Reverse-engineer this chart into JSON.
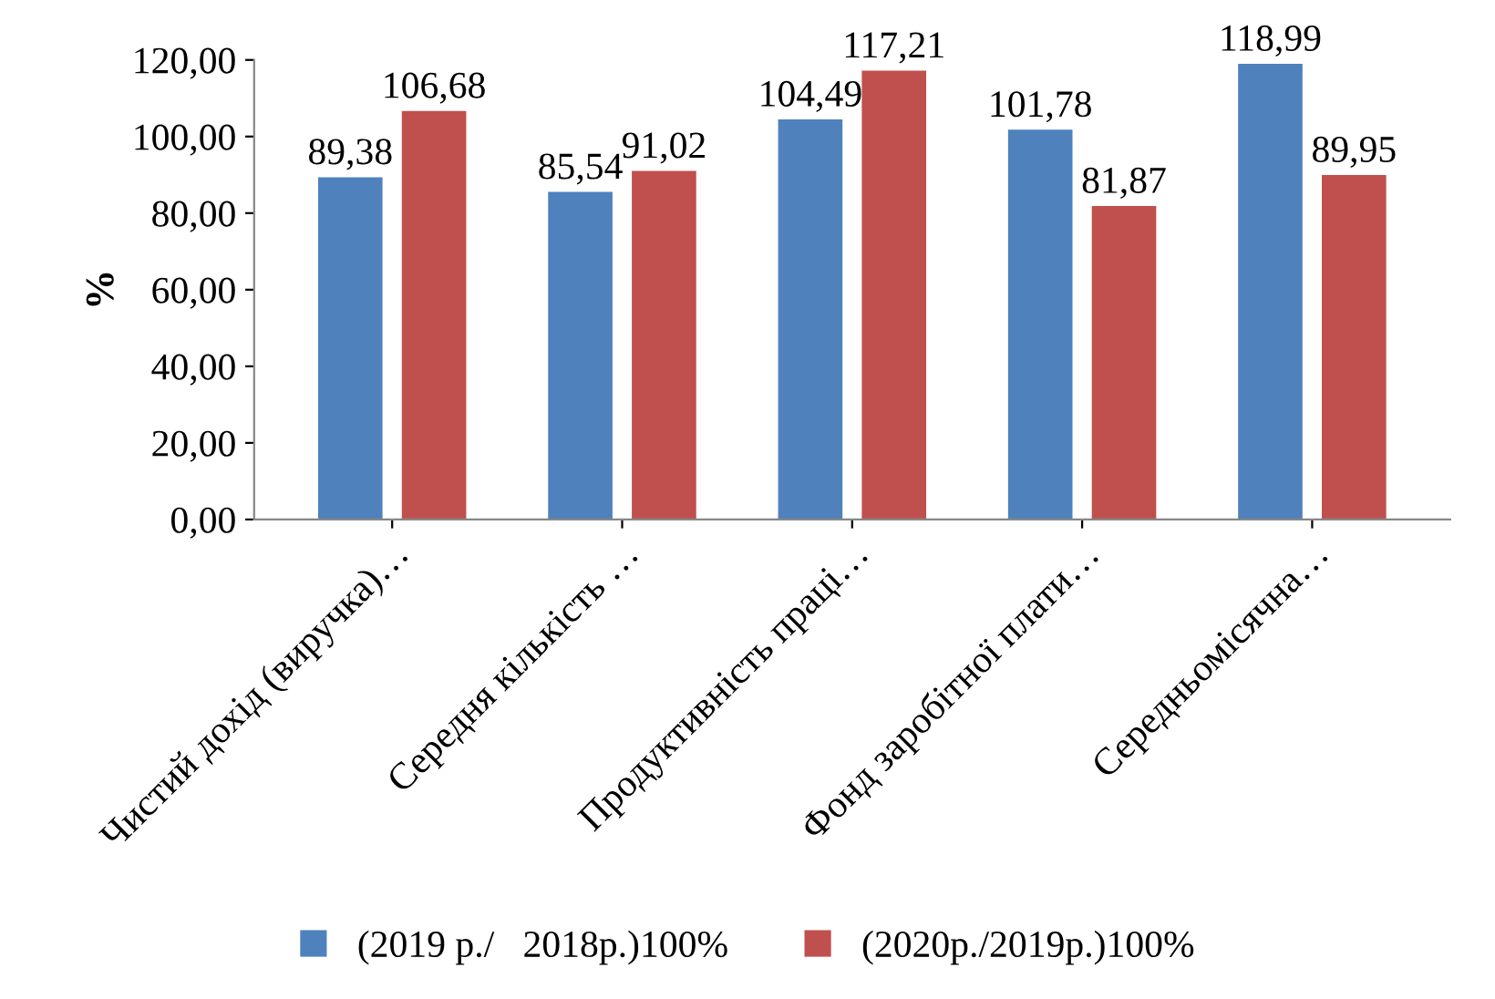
{
  "chart_data": {
    "type": "bar",
    "ylabel": "%",
    "categories": [
      "Чистий дохід (виручка)…",
      "Середня кількість …",
      "Продуктивність праці…",
      "Фонд заробітної плати…",
      "Середньомісячна…"
    ],
    "series": [
      {
        "name": "(2019 р./   2018р.)100%",
        "color": "#4f81bd",
        "values": [
          89.38,
          85.54,
          104.49,
          101.78,
          118.99
        ],
        "value_labels": [
          "89,38",
          "85,54",
          "104,49",
          "101,78",
          "118,99"
        ]
      },
      {
        "name": "(2020р./2019р.)100%",
        "color": "#c0504d",
        "values": [
          106.68,
          91.02,
          117.21,
          81.87,
          89.95
        ],
        "value_labels": [
          "106,68",
          "91,02",
          "117,21",
          "81,87",
          "89,95"
        ]
      }
    ],
    "ylim": [
      0,
      120
    ],
    "yticks": [
      {
        "value": 0,
        "label": "0,00"
      },
      {
        "value": 20,
        "label": "20,00"
      },
      {
        "value": 40,
        "label": "40,00"
      },
      {
        "value": 60,
        "label": "60,00"
      },
      {
        "value": 80,
        "label": "80,00"
      },
      {
        "value": 100,
        "label": "100,00"
      },
      {
        "value": 120,
        "label": "120,00"
      }
    ],
    "grid": false,
    "legend": "bottom"
  }
}
